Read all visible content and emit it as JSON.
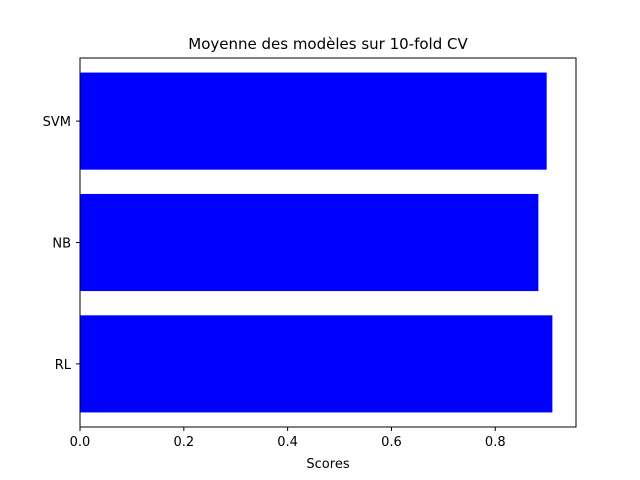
{
  "chart_data": {
    "type": "bar",
    "orientation": "horizontal",
    "title": "Moyenne des modèles sur 10-fold CV",
    "xlabel": "Scores",
    "ylabel": "",
    "categories": [
      "RL",
      "NB",
      "SVM"
    ],
    "values": [
      0.91,
      0.883,
      0.899
    ],
    "xlim": [
      0,
      0.9555
    ],
    "xticks": [
      0.0,
      0.2,
      0.4,
      0.6,
      0.8
    ],
    "xtick_labels": [
      "0.0",
      "0.2",
      "0.4",
      "0.6",
      "0.8"
    ],
    "bar_color": "#0000ff",
    "grid": false
  }
}
